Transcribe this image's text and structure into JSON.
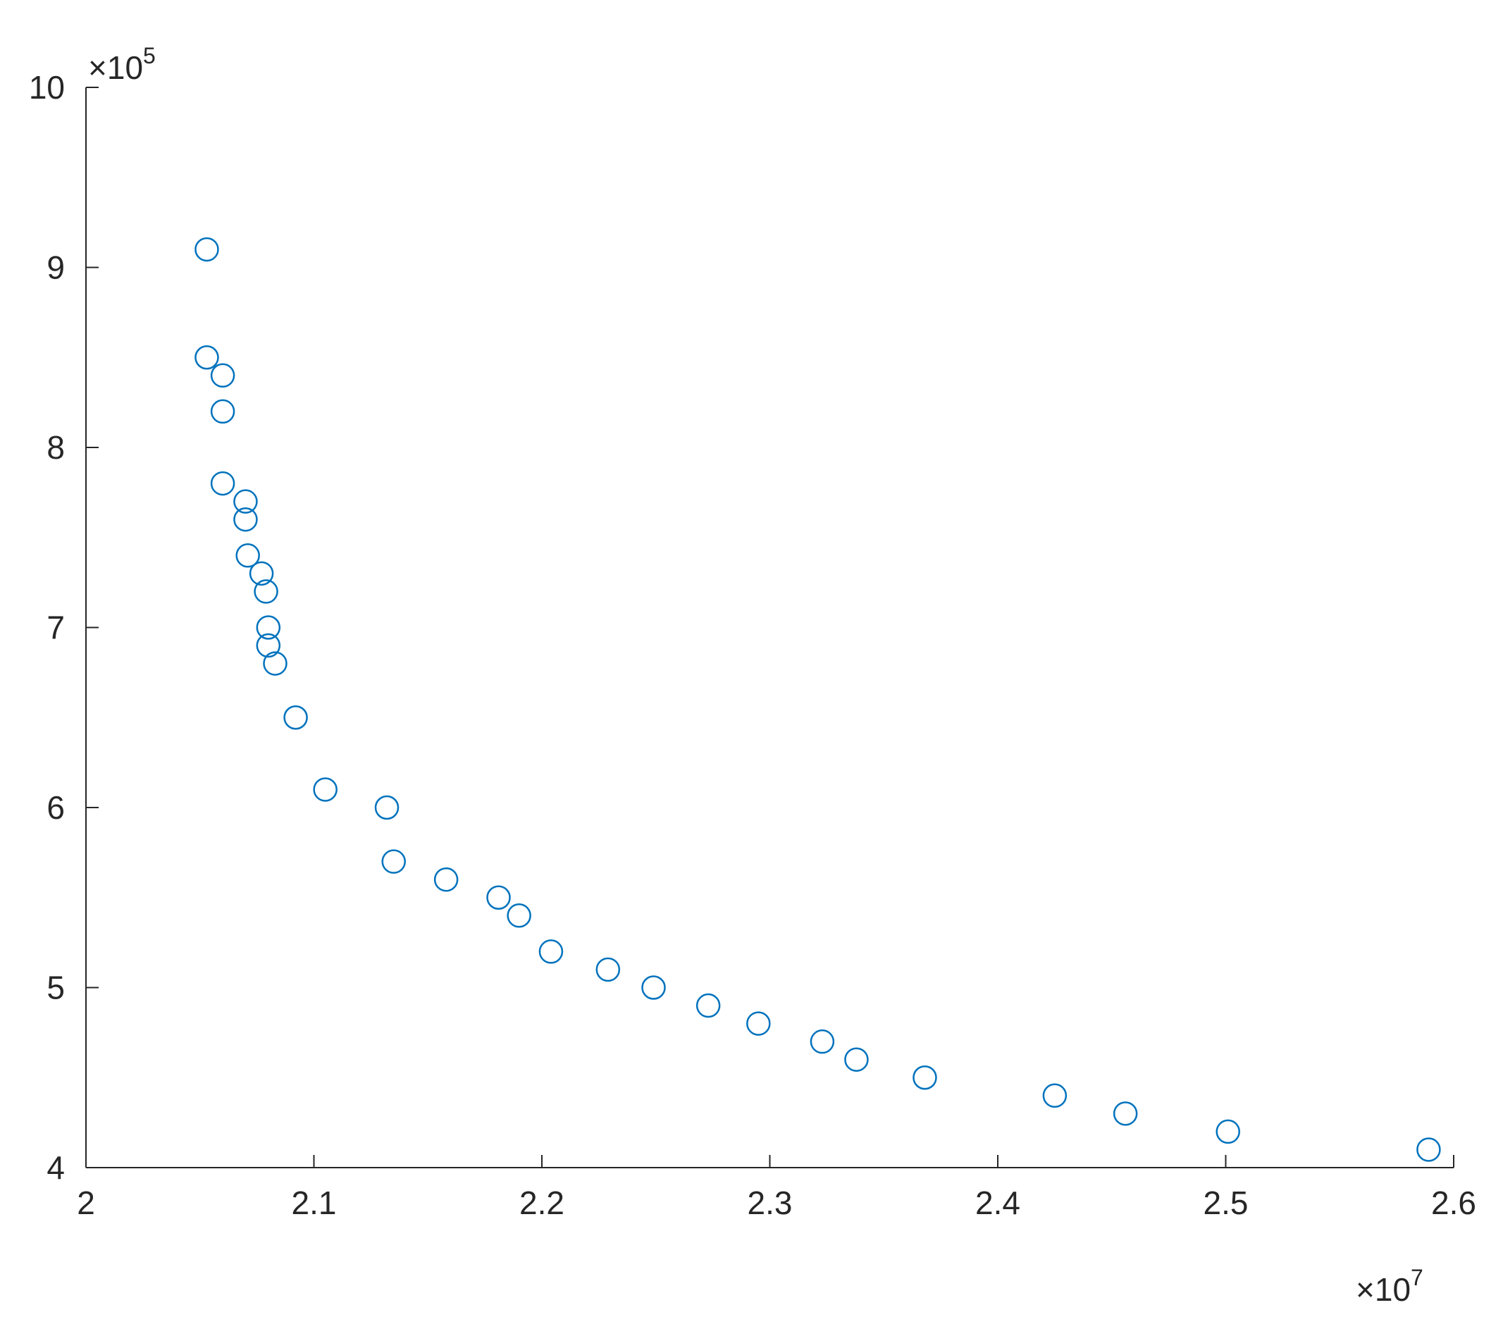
{
  "chart_data": {
    "type": "scatter",
    "title": "",
    "xlabel": "",
    "ylabel": "",
    "xlim": [
      20000000,
      26000000
    ],
    "ylim": [
      400000,
      1000000
    ],
    "grid": false,
    "x_axis": {
      "tick_labels": [
        "2",
        "2.1",
        "2.2",
        "2.3",
        "2.4",
        "2.5",
        "2.6"
      ],
      "tick_values": [
        20000000,
        21000000,
        22000000,
        23000000,
        24000000,
        25000000,
        26000000
      ],
      "exponent_base": "×10",
      "exponent_power": "7"
    },
    "y_axis": {
      "tick_labels": [
        "4",
        "5",
        "6",
        "7",
        "8",
        "9",
        "10"
      ],
      "tick_values": [
        400000,
        500000,
        600000,
        700000,
        800000,
        900000,
        1000000
      ],
      "exponent_base": "×10",
      "exponent_power": "5"
    },
    "marker": {
      "shape": "open-circle",
      "color": "#0072BD"
    },
    "colors": {
      "axis": "#262626",
      "background": "#ffffff"
    },
    "points": [
      {
        "x": 20530000,
        "y": 910000
      },
      {
        "x": 20530000,
        "y": 850000
      },
      {
        "x": 20600000,
        "y": 840000
      },
      {
        "x": 20600000,
        "y": 820000
      },
      {
        "x": 20600000,
        "y": 780000
      },
      {
        "x": 20700000,
        "y": 770000
      },
      {
        "x": 20700000,
        "y": 760000
      },
      {
        "x": 20710000,
        "y": 740000
      },
      {
        "x": 20770000,
        "y": 730000
      },
      {
        "x": 20790000,
        "y": 720000
      },
      {
        "x": 20800000,
        "y": 700000
      },
      {
        "x": 20800000,
        "y": 690000
      },
      {
        "x": 20830000,
        "y": 680000
      },
      {
        "x": 20920000,
        "y": 650000
      },
      {
        "x": 21050000,
        "y": 610000
      },
      {
        "x": 21320000,
        "y": 600000
      },
      {
        "x": 21350000,
        "y": 570000
      },
      {
        "x": 21580000,
        "y": 560000
      },
      {
        "x": 21810000,
        "y": 550000
      },
      {
        "x": 21900000,
        "y": 540000
      },
      {
        "x": 22040000,
        "y": 520000
      },
      {
        "x": 22290000,
        "y": 510000
      },
      {
        "x": 22490000,
        "y": 500000
      },
      {
        "x": 22730000,
        "y": 490000
      },
      {
        "x": 22950000,
        "y": 480000
      },
      {
        "x": 23230000,
        "y": 470000
      },
      {
        "x": 23380000,
        "y": 460000
      },
      {
        "x": 23680000,
        "y": 450000
      },
      {
        "x": 24250000,
        "y": 440000
      },
      {
        "x": 24560000,
        "y": 430000
      },
      {
        "x": 25010000,
        "y": 420000
      },
      {
        "x": 25890000,
        "y": 410000
      }
    ]
  }
}
